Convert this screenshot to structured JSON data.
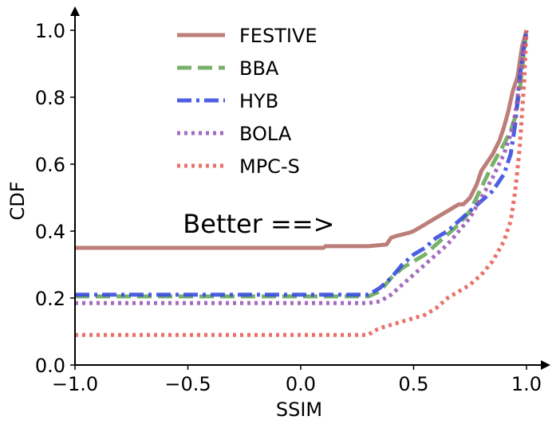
{
  "chart_data": {
    "type": "line",
    "title": "",
    "xlabel": "SSIM",
    "ylabel": "CDF",
    "xlim": [
      -1.0,
      1.0
    ],
    "ylim": [
      0.0,
      1.0
    ],
    "xticks": [
      "-1.0",
      "-0.5",
      "0.0",
      "0.5",
      "1.0"
    ],
    "yticks": [
      "0.0",
      "0.2",
      "0.4",
      "0.6",
      "0.8",
      "1.0"
    ],
    "xtick_values": [
      -1.0,
      -0.5,
      0.0,
      0.5,
      1.0
    ],
    "ytick_values": [
      0.0,
      0.2,
      0.4,
      0.6,
      0.8,
      1.0
    ],
    "grid": false,
    "legend_position": "top-center",
    "annotation": "Better ==>",
    "annotation_at": [
      -0.2,
      0.4
    ],
    "series": [
      {
        "name": "FESTIVE",
        "color": "#b5706a",
        "dash": "solid",
        "x": [
          -1.0,
          0.1,
          0.11,
          0.3,
          0.38,
          0.4,
          0.42,
          0.45,
          0.48,
          0.5,
          0.55,
          0.6,
          0.65,
          0.7,
          0.72,
          0.75,
          0.78,
          0.8,
          0.82,
          0.85,
          0.88,
          0.9,
          0.92,
          0.94,
          0.96,
          0.98,
          1.0
        ],
        "y": [
          0.35,
          0.35,
          0.355,
          0.355,
          0.36,
          0.38,
          0.385,
          0.39,
          0.395,
          0.4,
          0.42,
          0.44,
          0.46,
          0.48,
          0.48,
          0.5,
          0.54,
          0.58,
          0.6,
          0.63,
          0.67,
          0.71,
          0.76,
          0.82,
          0.86,
          0.95,
          1.0
        ]
      },
      {
        "name": "BBA",
        "color": "#6aa85a",
        "dash": "dashed",
        "x": [
          -1.0,
          0.3,
          0.35,
          0.4,
          0.45,
          0.5,
          0.55,
          0.6,
          0.65,
          0.7,
          0.75,
          0.8,
          0.85,
          0.9,
          0.93,
          0.95,
          0.97,
          1.0
        ],
        "y": [
          0.205,
          0.205,
          0.22,
          0.26,
          0.29,
          0.31,
          0.33,
          0.36,
          0.39,
          0.42,
          0.46,
          0.53,
          0.6,
          0.66,
          0.7,
          0.74,
          0.82,
          1.0
        ]
      },
      {
        "name": "HYB",
        "color": "#3a4ee0",
        "dash": "dashdot",
        "x": [
          -1.0,
          0.3,
          0.35,
          0.4,
          0.45,
          0.5,
          0.55,
          0.6,
          0.65,
          0.7,
          0.75,
          0.8,
          0.85,
          0.9,
          0.93,
          0.95,
          0.97,
          1.0
        ],
        "y": [
          0.21,
          0.21,
          0.23,
          0.26,
          0.3,
          0.33,
          0.35,
          0.38,
          0.4,
          0.43,
          0.46,
          0.49,
          0.52,
          0.57,
          0.63,
          0.72,
          0.86,
          1.0
        ]
      },
      {
        "name": "BOLA",
        "color": "#9a5bb8",
        "dash": "dotted",
        "x": [
          -1.0,
          0.3,
          0.35,
          0.4,
          0.45,
          0.5,
          0.55,
          0.6,
          0.65,
          0.7,
          0.75,
          0.8,
          0.85,
          0.9,
          0.93,
          0.95,
          0.97,
          1.0
        ],
        "y": [
          0.185,
          0.185,
          0.19,
          0.21,
          0.24,
          0.27,
          0.3,
          0.33,
          0.36,
          0.4,
          0.44,
          0.5,
          0.56,
          0.63,
          0.69,
          0.75,
          0.85,
          1.0
        ]
      },
      {
        "name": "MPC-S",
        "color": "#e8625a",
        "dash": "dotted",
        "x": [
          -1.0,
          0.3,
          0.32,
          0.35,
          0.4,
          0.45,
          0.5,
          0.55,
          0.6,
          0.65,
          0.7,
          0.75,
          0.8,
          0.85,
          0.9,
          0.93,
          0.95,
          0.97,
          0.99,
          1.0
        ],
        "y": [
          0.09,
          0.09,
          0.1,
          0.11,
          0.12,
          0.13,
          0.14,
          0.15,
          0.17,
          0.2,
          0.22,
          0.24,
          0.27,
          0.31,
          0.37,
          0.43,
          0.52,
          0.65,
          0.85,
          1.0
        ]
      }
    ]
  }
}
